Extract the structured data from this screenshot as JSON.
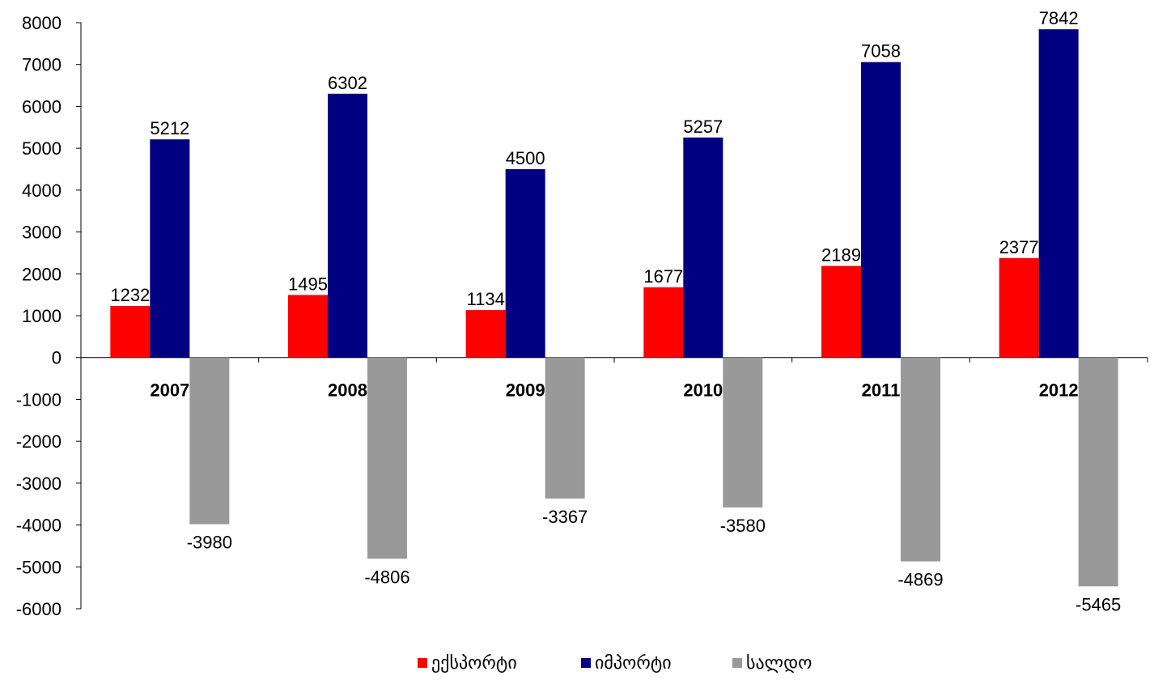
{
  "chart_data": {
    "type": "bar",
    "categories": [
      "2007",
      "2008",
      "2009",
      "2010",
      "2011",
      "2012"
    ],
    "series": [
      {
        "name": "ექსპორტი",
        "color": "#ff0000",
        "values": [
          1232,
          1495,
          1134,
          1677,
          2189,
          2377
        ]
      },
      {
        "name": "იმპორტი",
        "color": "#000080",
        "values": [
          5212,
          6302,
          4500,
          5257,
          7058,
          7842
        ]
      },
      {
        "name": "სალდო",
        "color": "#999999",
        "values": [
          -3980,
          -4806,
          -3367,
          -3580,
          -4869,
          -5465
        ]
      }
    ],
    "y_ticks": [
      "8000",
      "7000",
      "6000",
      "5000",
      "4000",
      "3000",
      "2000",
      "1000",
      "0",
      "-1000",
      "-2000",
      "-3000",
      "-4000",
      "-5000",
      "-6000"
    ],
    "ylim": [
      -6000,
      8000
    ],
    "grid": false,
    "legend": "bottom-center",
    "data_labels": true
  }
}
